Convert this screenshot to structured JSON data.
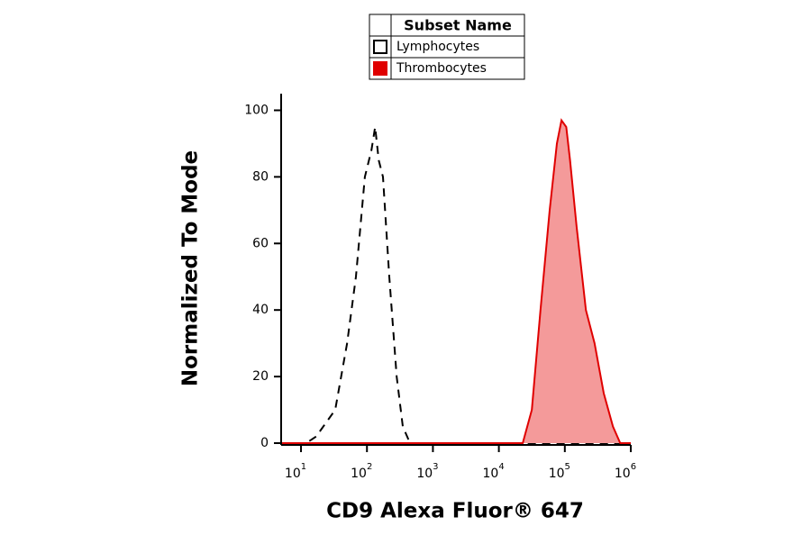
{
  "chart_data": {
    "type": "line",
    "x_label": "CD9 Alexa Fluor® 647",
    "y_label": "Normalized To Mode",
    "legend_title": "Subset Name",
    "legend_position": "top",
    "xscale": "log",
    "xlim": [
      5,
      1000000
    ],
    "ylim": [
      0,
      105
    ],
    "xticks": [
      {
        "value": 10,
        "label": "10",
        "exponent": "1"
      },
      {
        "value": 100,
        "label": "10",
        "exponent": "2"
      },
      {
        "value": 1000,
        "label": "10",
        "exponent": "3"
      },
      {
        "value": 10000,
        "label": "10",
        "exponent": "4"
      },
      {
        "value": 100000,
        "label": "10",
        "exponent": "5"
      },
      {
        "value": 1000000,
        "label": "10",
        "exponent": "6"
      }
    ],
    "yticks": [
      0,
      20,
      40,
      60,
      80,
      100
    ],
    "series": [
      {
        "name": "Lymphocytes",
        "color": "#000000",
        "dashed": true,
        "fill": "none",
        "x": [
          5,
          12,
          17,
          33,
          50,
          68,
          93,
          117,
          133,
          151,
          175,
          218,
          282,
          350,
          450,
          1000000
        ],
        "values": [
          0,
          0,
          2,
          10,
          30,
          50,
          80,
          88,
          95,
          85,
          80,
          50,
          20,
          5,
          0,
          0
        ]
      },
      {
        "name": "Thrombocytes",
        "color": "#e00000",
        "dashed": false,
        "fill": "#f49a9a",
        "x": [
          5,
          23000,
          31600,
          42700,
          58900,
          75900,
          89000,
          105000,
          120000,
          151000,
          209000,
          282000,
          389000,
          537000,
          692000,
          1000000
        ],
        "values": [
          0,
          0,
          10,
          40,
          70,
          90,
          97,
          95,
          85,
          65,
          40,
          30,
          15,
          5,
          0,
          0
        ]
      }
    ]
  }
}
